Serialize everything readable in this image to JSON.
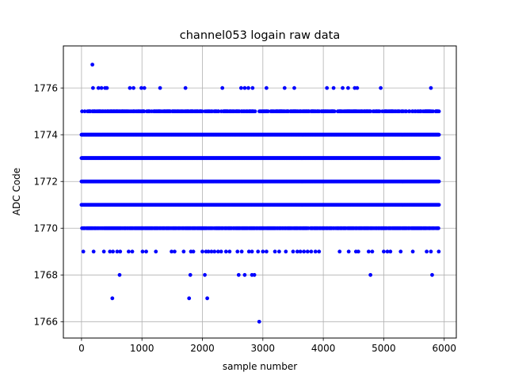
{
  "chart_data": {
    "type": "scatter",
    "title": "channel053 logain raw data",
    "xlabel": "sample number",
    "ylabel": "ADC Code",
    "xlim": [
      -300,
      6200
    ],
    "ylim": [
      1765.3,
      1777.8
    ],
    "xticks": [
      0,
      1000,
      2000,
      3000,
      4000,
      5000,
      6000
    ],
    "yticks": [
      1766,
      1768,
      1770,
      1772,
      1774,
      1776
    ],
    "grid": true,
    "point_color": "#0000ff",
    "dense_rows": [
      {
        "y": 1775,
        "x_range": [
          0,
          5920
        ],
        "coverage": 0.62
      },
      {
        "y": 1774,
        "x_range": [
          0,
          5920
        ],
        "coverage": 1.0
      },
      {
        "y": 1773,
        "x_range": [
          0,
          5920
        ],
        "coverage": 1.0
      },
      {
        "y": 1772,
        "x_range": [
          0,
          5920
        ],
        "coverage": 1.0
      },
      {
        "y": 1771,
        "x_range": [
          0,
          5920
        ],
        "coverage": 1.0
      },
      {
        "y": 1770,
        "x_range": [
          0,
          5920
        ],
        "coverage": 0.85
      }
    ],
    "outliers": [
      {
        "x": 180,
        "y": 1777
      },
      {
        "x": 190,
        "y": 1776
      },
      {
        "x": 280,
        "y": 1776
      },
      {
        "x": 330,
        "y": 1776
      },
      {
        "x": 390,
        "y": 1776
      },
      {
        "x": 420,
        "y": 1776
      },
      {
        "x": 800,
        "y": 1776
      },
      {
        "x": 860,
        "y": 1776
      },
      {
        "x": 990,
        "y": 1776
      },
      {
        "x": 1040,
        "y": 1776
      },
      {
        "x": 1300,
        "y": 1776
      },
      {
        "x": 1720,
        "y": 1776
      },
      {
        "x": 2330,
        "y": 1776
      },
      {
        "x": 2640,
        "y": 1776
      },
      {
        "x": 2700,
        "y": 1776
      },
      {
        "x": 2760,
        "y": 1776
      },
      {
        "x": 2830,
        "y": 1776
      },
      {
        "x": 3060,
        "y": 1776
      },
      {
        "x": 3360,
        "y": 1776
      },
      {
        "x": 3520,
        "y": 1776
      },
      {
        "x": 4060,
        "y": 1776
      },
      {
        "x": 4170,
        "y": 1776
      },
      {
        "x": 4320,
        "y": 1776
      },
      {
        "x": 4410,
        "y": 1776
      },
      {
        "x": 4520,
        "y": 1776
      },
      {
        "x": 4560,
        "y": 1776
      },
      {
        "x": 4950,
        "y": 1776
      },
      {
        "x": 5780,
        "y": 1776
      },
      {
        "x": 30,
        "y": 1769
      },
      {
        "x": 200,
        "y": 1769
      },
      {
        "x": 370,
        "y": 1769
      },
      {
        "x": 470,
        "y": 1769
      },
      {
        "x": 520,
        "y": 1769
      },
      {
        "x": 590,
        "y": 1769
      },
      {
        "x": 640,
        "y": 1769
      },
      {
        "x": 780,
        "y": 1769
      },
      {
        "x": 840,
        "y": 1769
      },
      {
        "x": 1010,
        "y": 1769
      },
      {
        "x": 1070,
        "y": 1769
      },
      {
        "x": 1230,
        "y": 1769
      },
      {
        "x": 1490,
        "y": 1769
      },
      {
        "x": 1540,
        "y": 1769
      },
      {
        "x": 1690,
        "y": 1769
      },
      {
        "x": 1810,
        "y": 1769
      },
      {
        "x": 1850,
        "y": 1769
      },
      {
        "x": 2000,
        "y": 1769
      },
      {
        "x": 2060,
        "y": 1769
      },
      {
        "x": 2100,
        "y": 1769
      },
      {
        "x": 2150,
        "y": 1769
      },
      {
        "x": 2200,
        "y": 1769
      },
      {
        "x": 2260,
        "y": 1769
      },
      {
        "x": 2310,
        "y": 1769
      },
      {
        "x": 2390,
        "y": 1769
      },
      {
        "x": 2450,
        "y": 1769
      },
      {
        "x": 2580,
        "y": 1769
      },
      {
        "x": 2650,
        "y": 1769
      },
      {
        "x": 2770,
        "y": 1769
      },
      {
        "x": 2820,
        "y": 1769
      },
      {
        "x": 2920,
        "y": 1769
      },
      {
        "x": 3000,
        "y": 1769
      },
      {
        "x": 3060,
        "y": 1769
      },
      {
        "x": 3200,
        "y": 1769
      },
      {
        "x": 3270,
        "y": 1769
      },
      {
        "x": 3380,
        "y": 1769
      },
      {
        "x": 3500,
        "y": 1769
      },
      {
        "x": 3570,
        "y": 1769
      },
      {
        "x": 3620,
        "y": 1769
      },
      {
        "x": 3680,
        "y": 1769
      },
      {
        "x": 3740,
        "y": 1769
      },
      {
        "x": 3800,
        "y": 1769
      },
      {
        "x": 3870,
        "y": 1769
      },
      {
        "x": 3930,
        "y": 1769
      },
      {
        "x": 4270,
        "y": 1769
      },
      {
        "x": 4420,
        "y": 1769
      },
      {
        "x": 4540,
        "y": 1769
      },
      {
        "x": 4580,
        "y": 1769
      },
      {
        "x": 4750,
        "y": 1769
      },
      {
        "x": 4810,
        "y": 1769
      },
      {
        "x": 5000,
        "y": 1769
      },
      {
        "x": 5060,
        "y": 1769
      },
      {
        "x": 5110,
        "y": 1769
      },
      {
        "x": 5280,
        "y": 1769
      },
      {
        "x": 5480,
        "y": 1769
      },
      {
        "x": 5710,
        "y": 1769
      },
      {
        "x": 5780,
        "y": 1769
      },
      {
        "x": 5910,
        "y": 1769
      },
      {
        "x": 630,
        "y": 1768
      },
      {
        "x": 1800,
        "y": 1768
      },
      {
        "x": 2040,
        "y": 1768
      },
      {
        "x": 2600,
        "y": 1768
      },
      {
        "x": 2700,
        "y": 1768
      },
      {
        "x": 2820,
        "y": 1768
      },
      {
        "x": 2860,
        "y": 1768
      },
      {
        "x": 4780,
        "y": 1768
      },
      {
        "x": 5800,
        "y": 1768
      },
      {
        "x": 510,
        "y": 1767
      },
      {
        "x": 1780,
        "y": 1767
      },
      {
        "x": 2080,
        "y": 1767
      },
      {
        "x": 2940,
        "y": 1766
      }
    ]
  }
}
